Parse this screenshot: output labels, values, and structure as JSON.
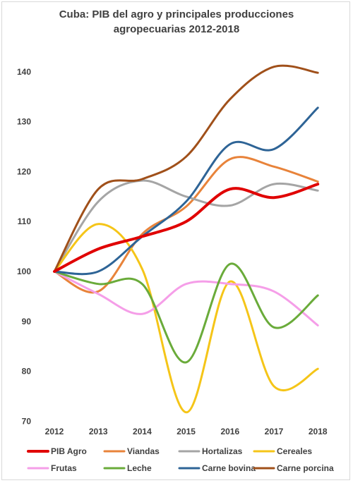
{
  "chart_data": {
    "type": "line",
    "title_lines": [
      "Cuba: PIB del agro y principales producciones",
      "agropecuarias 2012-2018"
    ],
    "title": "Cuba: PIB del agro y principales producciones agropecuarias 2012-2018",
    "xlabel": "",
    "ylabel": "",
    "x": [
      "2012",
      "2013",
      "2014",
      "2015",
      "2016",
      "2017",
      "2018"
    ],
    "yticks": [
      70,
      80,
      90,
      100,
      110,
      120,
      130,
      140
    ],
    "ylim": [
      70,
      145
    ],
    "grid": false,
    "legend_position": "bottom",
    "series": [
      {
        "name": "PIB Agro",
        "color": "#e00000",
        "values": [
          100,
          104.5,
          107,
          110,
          116.5,
          114.8,
          117.5
        ]
      },
      {
        "name": "Viandas",
        "color": "#e8833a",
        "values": [
          100,
          96,
          107.5,
          113,
          122.5,
          121,
          118
        ]
      },
      {
        "name": "Hortalizas",
        "color": "#a5a5a5",
        "values": [
          100,
          114,
          118.2,
          115,
          113.2,
          117.5,
          116.2
        ]
      },
      {
        "name": "Cereales",
        "color": "#f5c518",
        "values": [
          100,
          109.5,
          100.5,
          71.8,
          98,
          77,
          80.5
        ]
      },
      {
        "name": "Frutas",
        "color": "#f59ee8",
        "values": [
          100,
          95.5,
          91.5,
          97.5,
          97.5,
          96,
          89.2
        ]
      },
      {
        "name": "Leche",
        "color": "#6aab3a",
        "values": [
          100,
          97.5,
          97.5,
          81.8,
          101.5,
          88.8,
          95.2
        ]
      },
      {
        "name": "Carne bovina",
        "color": "#2e6496",
        "values": [
          100,
          100,
          107,
          114,
          125.5,
          124.5,
          132.8
        ]
      },
      {
        "name": "Carne porcina",
        "color": "#a0501a",
        "values": [
          100,
          116.5,
          118.5,
          123,
          134.5,
          141,
          139.8
        ]
      }
    ]
  }
}
